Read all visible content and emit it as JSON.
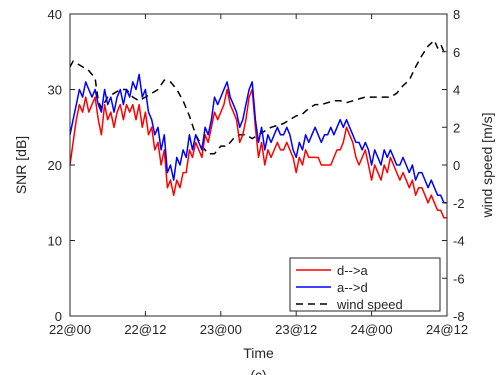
{
  "chart_data": {
    "type": "line",
    "xlabel": "Time",
    "ylabel_left": "SNR [dB]",
    "ylabel_right": "wind speed [m/s]",
    "caption": "(c)",
    "x_unit": "hours from 22@00",
    "xlim": [
      0,
      60
    ],
    "x_ticks": [
      0,
      12,
      24,
      36,
      48,
      60
    ],
    "x_tick_labels": [
      "22@00",
      "22@12",
      "23@00",
      "23@12",
      "24@00",
      "24@12"
    ],
    "ylim_left": [
      0,
      40
    ],
    "y_ticks_left": [
      0,
      10,
      20,
      30,
      40
    ],
    "ylim_right": [
      -8,
      8
    ],
    "y_ticks_right": [
      -8,
      -6,
      -4,
      -2,
      0,
      2,
      4,
      6,
      8
    ],
    "legend_position": "bottom-right",
    "colors": {
      "d_to_a": "#ff0000",
      "a_to_d": "#0000ff",
      "wind": "#000000"
    },
    "series": [
      {
        "name": "d-->a",
        "axis": "left",
        "points": [
          [
            0,
            20
          ],
          [
            0.5,
            23
          ],
          [
            1,
            26
          ],
          [
            1.5,
            28
          ],
          [
            2,
            27
          ],
          [
            2.5,
            29
          ],
          [
            3,
            27
          ],
          [
            3.5,
            28
          ],
          [
            4,
            29
          ],
          [
            4.5,
            26
          ],
          [
            5,
            24
          ],
          [
            5.5,
            28
          ],
          [
            6,
            26
          ],
          [
            6.5,
            27
          ],
          [
            7,
            25
          ],
          [
            7.5,
            27
          ],
          [
            8,
            28
          ],
          [
            8.5,
            26
          ],
          [
            9,
            28
          ],
          [
            9.5,
            27
          ],
          [
            10,
            28
          ],
          [
            10.5,
            26
          ],
          [
            11,
            28
          ],
          [
            11.5,
            25
          ],
          [
            12,
            27
          ],
          [
            12.5,
            24
          ],
          [
            13,
            25
          ],
          [
            13.5,
            22
          ],
          [
            14,
            23
          ],
          [
            14.5,
            20
          ],
          [
            15,
            22
          ],
          [
            15.5,
            17
          ],
          [
            16,
            18
          ],
          [
            16.5,
            16
          ],
          [
            17,
            18
          ],
          [
            17.5,
            17
          ],
          [
            18,
            19
          ],
          [
            18.5,
            19
          ],
          [
            19,
            22
          ],
          [
            19.5,
            21
          ],
          [
            20,
            23
          ],
          [
            20.5,
            22
          ],
          [
            21,
            21
          ],
          [
            21.5,
            24
          ],
          [
            22,
            23
          ],
          [
            22.5,
            25
          ],
          [
            23,
            27
          ],
          [
            23.5,
            26
          ],
          [
            24,
            27
          ],
          [
            24.5,
            28
          ],
          [
            25,
            30
          ],
          [
            25.5,
            28
          ],
          [
            26,
            27
          ],
          [
            26.5,
            26
          ],
          [
            27,
            23
          ],
          [
            27.5,
            24
          ],
          [
            28,
            26
          ],
          [
            28.5,
            29
          ],
          [
            29,
            30
          ],
          [
            29.5,
            25
          ],
          [
            30,
            21
          ],
          [
            30.5,
            23
          ],
          [
            31,
            20
          ],
          [
            31.5,
            22
          ],
          [
            32,
            21
          ],
          [
            32.5,
            22
          ],
          [
            33,
            23
          ],
          [
            33.5,
            22
          ],
          [
            34,
            22
          ],
          [
            34.5,
            23
          ],
          [
            35,
            22
          ],
          [
            35.5,
            21
          ],
          [
            36,
            19
          ],
          [
            36.5,
            21
          ],
          [
            37,
            20
          ],
          [
            37.5,
            22
          ],
          [
            38,
            21
          ],
          [
            38.5,
            21
          ],
          [
            39,
            21
          ],
          [
            39.5,
            21
          ],
          [
            40,
            20
          ],
          [
            40.5,
            20
          ],
          [
            41,
            20
          ],
          [
            41.5,
            20
          ],
          [
            42,
            21
          ],
          [
            42.5,
            22
          ],
          [
            43,
            22
          ],
          [
            43.5,
            23
          ],
          [
            44,
            25
          ],
          [
            44.5,
            24
          ],
          [
            45,
            23
          ],
          [
            45.5,
            21
          ],
          [
            46,
            20
          ],
          [
            46.5,
            21
          ],
          [
            47,
            22
          ],
          [
            47.5,
            20
          ],
          [
            48,
            18
          ],
          [
            48.5,
            20
          ],
          [
            49,
            19
          ],
          [
            49.5,
            18
          ],
          [
            50,
            20
          ],
          [
            50.5,
            19
          ],
          [
            51,
            21
          ],
          [
            51.5,
            20
          ],
          [
            52,
            19
          ],
          [
            52.5,
            18
          ],
          [
            53,
            19
          ],
          [
            53.5,
            18
          ],
          [
            54,
            17
          ],
          [
            54.5,
            18
          ],
          [
            55,
            16
          ],
          [
            55.5,
            17
          ],
          [
            56,
            17
          ],
          [
            56.5,
            16
          ],
          [
            57,
            15
          ],
          [
            57.5,
            16
          ],
          [
            58,
            15
          ],
          [
            58.5,
            14
          ],
          [
            59,
            14
          ],
          [
            59.5,
            13
          ],
          [
            60,
            13
          ]
        ]
      },
      {
        "name": "a-->d",
        "axis": "left",
        "points": [
          [
            0,
            24
          ],
          [
            0.5,
            26
          ],
          [
            1,
            28
          ],
          [
            1.5,
            30
          ],
          [
            2,
            29
          ],
          [
            2.5,
            31
          ],
          [
            3,
            30
          ],
          [
            3.5,
            29
          ],
          [
            4,
            30
          ],
          [
            4.5,
            28
          ],
          [
            5,
            27
          ],
          [
            5.5,
            30
          ],
          [
            6,
            28
          ],
          [
            6.5,
            29
          ],
          [
            7,
            27
          ],
          [
            7.5,
            29
          ],
          [
            8,
            30
          ],
          [
            8.5,
            28
          ],
          [
            9,
            30
          ],
          [
            9.5,
            29
          ],
          [
            10,
            31
          ],
          [
            10.5,
            30
          ],
          [
            11,
            32
          ],
          [
            11.5,
            29
          ],
          [
            12,
            30
          ],
          [
            12.5,
            27
          ],
          [
            13,
            26
          ],
          [
            13.5,
            24
          ],
          [
            14,
            25
          ],
          [
            14.5,
            22
          ],
          [
            15,
            24
          ],
          [
            15.5,
            19
          ],
          [
            16,
            20
          ],
          [
            16.5,
            18
          ],
          [
            17,
            21
          ],
          [
            17.5,
            20
          ],
          [
            18,
            22
          ],
          [
            18.5,
            21
          ],
          [
            19,
            24
          ],
          [
            19.5,
            22
          ],
          [
            20,
            24
          ],
          [
            20.5,
            23
          ],
          [
            21,
            22
          ],
          [
            21.5,
            25
          ],
          [
            22,
            24
          ],
          [
            22.5,
            26
          ],
          [
            23,
            29
          ],
          [
            23.5,
            28
          ],
          [
            24,
            29
          ],
          [
            24.5,
            30
          ],
          [
            25,
            31
          ],
          [
            25.5,
            29
          ],
          [
            26,
            28
          ],
          [
            26.5,
            27
          ],
          [
            27,
            25
          ],
          [
            27.5,
            26
          ],
          [
            28,
            28
          ],
          [
            28.5,
            30
          ],
          [
            29,
            31
          ],
          [
            29.5,
            26
          ],
          [
            30,
            23
          ],
          [
            30.5,
            25
          ],
          [
            31,
            22
          ],
          [
            31.5,
            24
          ],
          [
            32,
            23
          ],
          [
            32.5,
            24
          ],
          [
            33,
            25
          ],
          [
            33.5,
            24
          ],
          [
            34,
            24
          ],
          [
            34.5,
            25
          ],
          [
            35,
            24
          ],
          [
            35.5,
            22
          ],
          [
            36,
            21
          ],
          [
            36.5,
            23
          ],
          [
            37,
            22
          ],
          [
            37.5,
            24
          ],
          [
            38,
            23
          ],
          [
            38.5,
            24
          ],
          [
            39,
            25
          ],
          [
            39.5,
            24
          ],
          [
            40,
            23
          ],
          [
            40.5,
            24
          ],
          [
            41,
            24
          ],
          [
            41.5,
            25
          ],
          [
            42,
            24
          ],
          [
            42.5,
            25
          ],
          [
            43,
            26
          ],
          [
            43.5,
            25
          ],
          [
            44,
            26
          ],
          [
            44.5,
            25
          ],
          [
            45,
            24
          ],
          [
            45.5,
            23
          ],
          [
            46,
            23
          ],
          [
            46.5,
            22
          ],
          [
            47,
            23
          ],
          [
            47.5,
            22
          ],
          [
            48,
            20
          ],
          [
            48.5,
            22
          ],
          [
            49,
            21
          ],
          [
            49.5,
            20
          ],
          [
            50,
            22
          ],
          [
            50.5,
            21
          ],
          [
            51,
            22
          ],
          [
            51.5,
            21
          ],
          [
            52,
            20
          ],
          [
            52.5,
            20
          ],
          [
            53,
            21
          ],
          [
            53.5,
            20
          ],
          [
            54,
            19
          ],
          [
            54.5,
            20
          ],
          [
            55,
            18
          ],
          [
            55.5,
            19
          ],
          [
            56,
            19
          ],
          [
            56.5,
            18
          ],
          [
            57,
            17
          ],
          [
            57.5,
            18
          ],
          [
            58,
            17
          ],
          [
            58.5,
            16
          ],
          [
            59,
            16
          ],
          [
            59.5,
            15
          ],
          [
            60,
            15
          ]
        ]
      },
      {
        "name": "wind speed",
        "axis": "right",
        "style": "dashed",
        "points": [
          [
            0,
            5.2
          ],
          [
            0.5,
            5.5
          ],
          [
            1,
            5.4
          ],
          [
            2,
            5.2
          ],
          [
            3,
            5.0
          ],
          [
            4,
            4.6
          ],
          [
            4.5,
            3.4
          ],
          [
            5,
            3.0
          ],
          [
            6,
            3.6
          ],
          [
            7,
            3.8
          ],
          [
            8,
            4.0
          ],
          [
            9,
            4.0
          ],
          [
            10,
            3.6
          ],
          [
            11,
            3.4
          ],
          [
            12,
            3.6
          ],
          [
            13,
            3.8
          ],
          [
            14,
            4.0
          ],
          [
            15,
            4.5
          ],
          [
            16,
            4.4
          ],
          [
            17,
            4.0
          ],
          [
            18,
            3.4
          ],
          [
            19,
            2.6
          ],
          [
            20,
            1.6
          ],
          [
            21,
            1.0
          ],
          [
            22,
            0.6
          ],
          [
            23,
            0.6
          ],
          [
            24,
            1.0
          ],
          [
            25,
            1.0
          ],
          [
            26,
            1.4
          ],
          [
            27,
            1.6
          ],
          [
            28,
            1.6
          ],
          [
            29,
            1.4
          ],
          [
            30,
            1.6
          ],
          [
            31,
            1.8
          ],
          [
            32,
            2.0
          ],
          [
            33,
            2.1
          ],
          [
            34,
            2.2
          ],
          [
            35,
            2.4
          ],
          [
            36,
            2.6
          ],
          [
            37,
            2.7
          ],
          [
            38,
            3.0
          ],
          [
            39,
            3.2
          ],
          [
            40,
            3.2
          ],
          [
            41,
            3.3
          ],
          [
            42,
            3.4
          ],
          [
            43,
            3.4
          ],
          [
            44,
            3.3
          ],
          [
            45,
            3.4
          ],
          [
            46,
            3.5
          ],
          [
            47,
            3.6
          ],
          [
            48,
            3.6
          ],
          [
            49,
            3.6
          ],
          [
            50,
            3.6
          ],
          [
            51,
            3.6
          ],
          [
            52,
            3.8
          ],
          [
            53,
            4.2
          ],
          [
            54,
            4.5
          ],
          [
            55,
            5.2
          ],
          [
            56,
            5.8
          ],
          [
            57,
            6.3
          ],
          [
            58,
            6.6
          ],
          [
            58.5,
            6.2
          ],
          [
            59,
            6.4
          ],
          [
            59.5,
            6.0
          ],
          [
            60,
            6.0
          ]
        ]
      }
    ]
  }
}
